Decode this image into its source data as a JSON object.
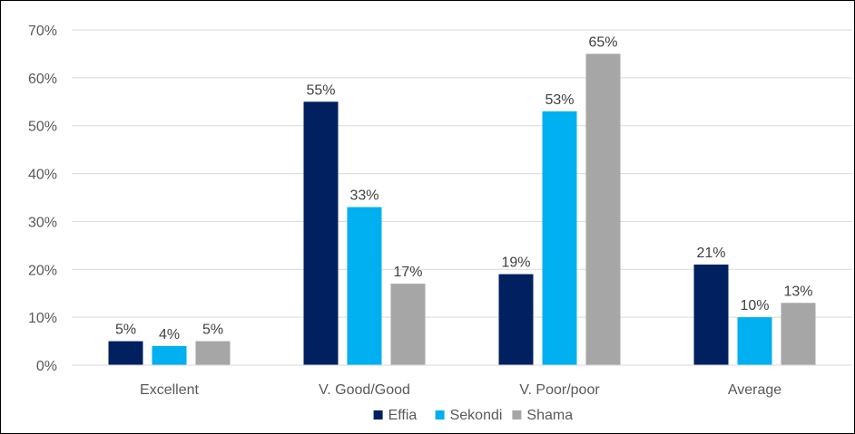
{
  "chart_data": {
    "type": "bar",
    "categories": [
      "Excellent",
      "V. Good/Good",
      "V. Poor/poor",
      "Average"
    ],
    "series": [
      {
        "name": "Effia",
        "color": "#002060",
        "values": [
          5,
          55,
          19,
          21
        ],
        "labels": [
          "5%",
          "55%",
          "19%",
          "21%"
        ]
      },
      {
        "name": "Sekondi",
        "color": "#00B0F0",
        "values": [
          4,
          33,
          53,
          10
        ],
        "labels": [
          "4%",
          "33%",
          "53%",
          "10%"
        ]
      },
      {
        "name": "Shama",
        "color": "#A6A6A6",
        "values": [
          5,
          17,
          65,
          13
        ],
        "labels": [
          "5%",
          "17%",
          "65%",
          "13%"
        ]
      }
    ],
    "ylim": [
      0,
      70
    ],
    "yticks": [
      0,
      10,
      20,
      30,
      40,
      50,
      60,
      70
    ],
    "ytick_labels": [
      "0%",
      "10%",
      "20%",
      "30%",
      "40%",
      "50%",
      "60%",
      "70%"
    ],
    "grid": true,
    "legend_position": "bottom",
    "title": "",
    "xlabel": "",
    "ylabel": ""
  }
}
